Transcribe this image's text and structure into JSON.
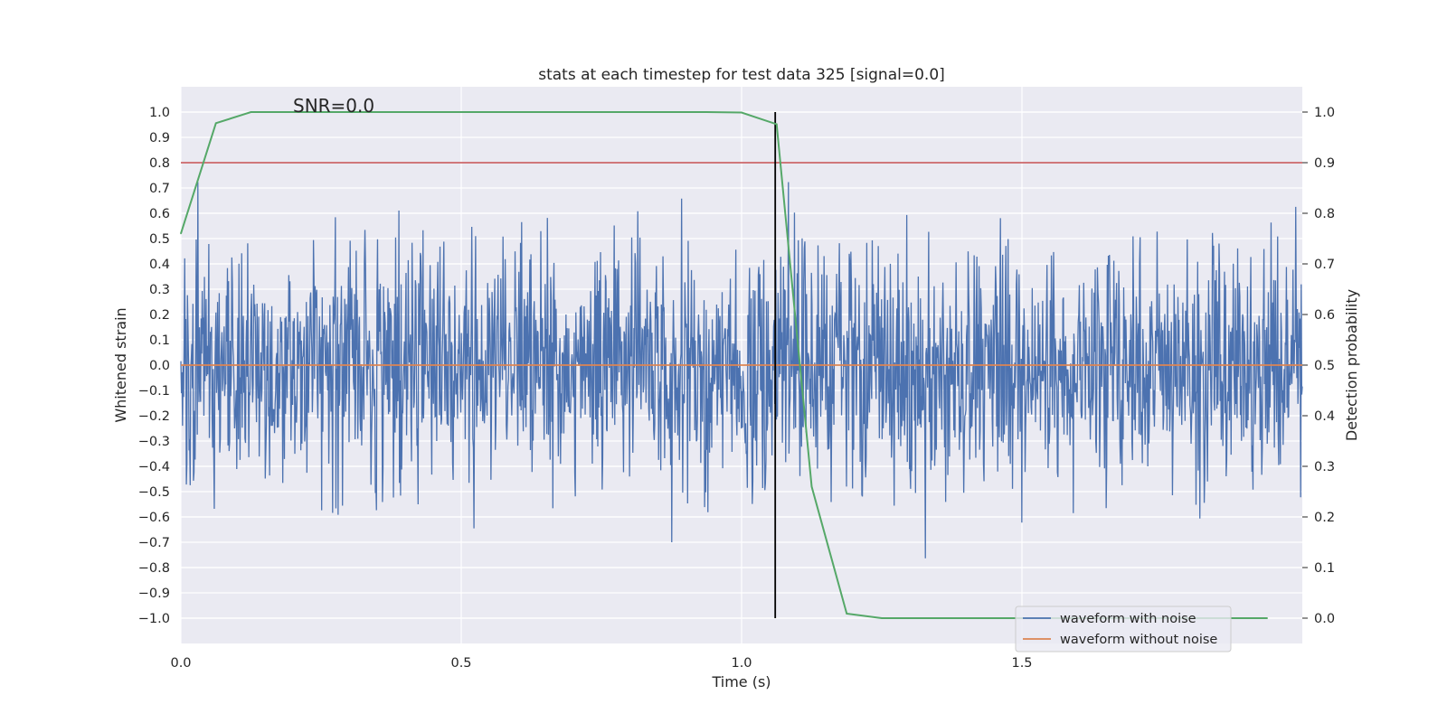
{
  "chart_data": {
    "type": "line",
    "title": "stats at each timestep for test data 325 [signal=0.0]",
    "xlabel": "Time (s)",
    "ylabel": "Whitened strain",
    "y2label": "Detection probability",
    "xlim": [
      0.0,
      2.0
    ],
    "ylim": [
      -1.1,
      1.1
    ],
    "y2lim": [
      -0.05,
      1.05
    ],
    "xticks": [
      0.0,
      0.5,
      1.0,
      1.5
    ],
    "xtick_labels": [
      "0.0",
      "0.5",
      "1.0",
      "1.5"
    ],
    "yticks": [
      1.0,
      0.9,
      0.8,
      0.7,
      0.6,
      0.5,
      0.4,
      0.3,
      0.2,
      0.1,
      0.0,
      -0.1,
      -0.2,
      -0.3,
      -0.4,
      -0.5,
      -0.6,
      -0.7,
      -0.8,
      -0.9,
      -1.0
    ],
    "ytick_labels": [
      "1.0",
      "0.9",
      "0.8",
      "0.7",
      "0.6",
      "0.5",
      "0.4",
      "0.3",
      "0.2",
      "0.1",
      "0.0",
      "−0.1",
      "−0.2",
      "−0.3",
      "−0.4",
      "−0.5",
      "−0.6",
      "−0.7",
      "−0.8",
      "−0.9",
      "−1.0"
    ],
    "y2ticks": [
      1.0,
      0.9,
      0.8,
      0.7,
      0.6,
      0.5,
      0.4,
      0.3,
      0.2,
      0.1,
      0.0
    ],
    "y2tick_labels": [
      "1.0",
      "0.9",
      "0.8",
      "0.7",
      "0.6",
      "0.5",
      "0.4",
      "0.3",
      "0.2",
      "0.1",
      "0.0"
    ],
    "annotation": "SNR=0.0",
    "threshold": {
      "value": 0.9,
      "axis": "y2",
      "color": "#c44e52"
    },
    "event_time": 1.06,
    "noise_series": {
      "name": "waveform with noise",
      "color": "#4c72b0",
      "samples": 2048,
      "amplitude_rms": 0.24,
      "seed": 325
    },
    "clean_series": {
      "name": "waveform without noise",
      "color": "#dd8452",
      "value": 0.0
    },
    "probability_series": {
      "name": "Detection probability",
      "color": "#55a868",
      "x": [
        0.0,
        0.0625,
        0.125,
        0.1875,
        0.25,
        0.3125,
        0.375,
        0.4375,
        0.5,
        0.5625,
        0.625,
        0.6875,
        0.75,
        0.8125,
        0.875,
        0.9375,
        1.0,
        1.0625,
        1.125,
        1.1875,
        1.25,
        1.3125,
        1.375,
        1.4375,
        1.5,
        1.5625,
        1.625,
        1.6875,
        1.75,
        1.8125,
        1.875,
        1.9375
      ],
      "y": [
        0.76,
        0.978,
        1.0,
        1.0,
        1.0,
        1.0,
        1.0,
        1.0,
        1.0,
        1.0,
        1.0,
        1.0,
        1.0,
        1.0,
        1.0,
        1.0,
        0.999,
        0.976,
        0.26,
        0.009,
        0.0,
        0.0,
        0.0,
        0.0,
        0.0,
        0.0,
        0.0,
        0.0,
        0.0,
        0.0,
        0.0,
        0.0
      ]
    },
    "legend": {
      "position": "lower-right",
      "entries": [
        "waveform with noise",
        "waveform without noise"
      ]
    },
    "grid": true
  }
}
